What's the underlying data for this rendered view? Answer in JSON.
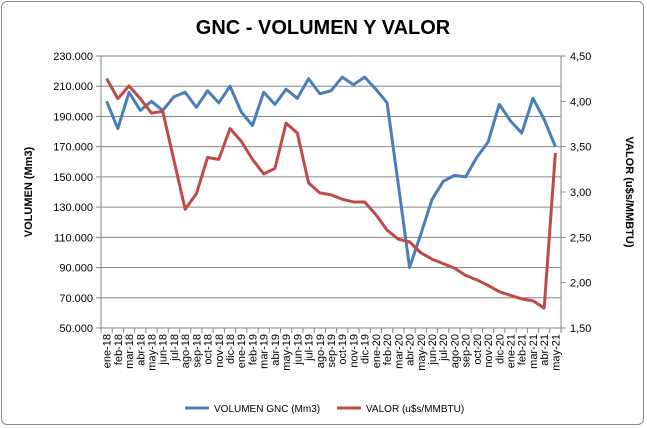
{
  "chart_data": {
    "type": "line",
    "title": "GNC - VOLUMEN Y VALOR",
    "ylabel": "VOLUMEN (Mm3)",
    "y2label": "VALOR (u$s/MMBTU)",
    "ylim": [
      50000,
      230000
    ],
    "y2lim": [
      1.5,
      4.5
    ],
    "yticks": [
      "50.000",
      "70.000",
      "90.000",
      "110.000",
      "130.000",
      "150.000",
      "170.000",
      "190.000",
      "210.000",
      "230.000"
    ],
    "y2ticks": [
      "1,50",
      "2,00",
      "2,50",
      "3,00",
      "3,50",
      "4,00",
      "4,50"
    ],
    "grid": true,
    "legend": "bottom",
    "categories": [
      "ene-18",
      "feb-18",
      "mar-18",
      "abr-18",
      "may-18",
      "jun-18",
      "jul-18",
      "ago-18",
      "sep-18",
      "oct-18",
      "nov-18",
      "dic-18",
      "ene-19",
      "feb-19",
      "mar-19",
      "abr-19",
      "may-19",
      "jun-19",
      "jul-19",
      "ago-19",
      "sep-19",
      "oct-19",
      "nov-19",
      "dic-19",
      "ene-20",
      "feb-20",
      "mar-20",
      "abr-20",
      "may-20",
      "jun-20",
      "jul-20",
      "ago-20",
      "sep-20",
      "oct-20",
      "nov-20",
      "dic-20",
      "ene-21",
      "feb-21",
      "mar-21",
      "abr-21",
      "may-21"
    ],
    "series": [
      {
        "name": "VOLUMEN  GNC (Mm3)",
        "axis": "left",
        "color": "#4a7ebb",
        "values": [
          200000,
          182000,
          206000,
          194000,
          200000,
          194000,
          203000,
          206000,
          196000,
          207000,
          199000,
          210000,
          193000,
          184000,
          206000,
          198000,
          208000,
          202000,
          215000,
          205000,
          207000,
          216000,
          211000,
          216000,
          208000,
          199000,
          145000,
          90000,
          112000,
          135000,
          147000,
          151000,
          150000,
          163000,
          173000,
          198000,
          187000,
          179000,
          202000,
          188000,
          170000
        ]
      },
      {
        "name": "VALOR (u$s/MMBTU)",
        "axis": "right",
        "color": "#be4b48",
        "values": [
          4.25,
          4.03,
          4.17,
          4.03,
          3.87,
          3.89,
          3.35,
          2.81,
          2.98,
          3.38,
          3.36,
          3.7,
          3.56,
          3.36,
          3.2,
          3.26,
          3.76,
          3.65,
          3.1,
          2.99,
          2.97,
          2.92,
          2.89,
          2.89,
          2.75,
          2.58,
          2.48,
          2.45,
          2.33,
          2.26,
          2.21,
          2.16,
          2.08,
          2.03,
          1.97,
          1.9,
          1.86,
          1.82,
          1.8,
          1.72,
          3.43
        ]
      }
    ]
  }
}
